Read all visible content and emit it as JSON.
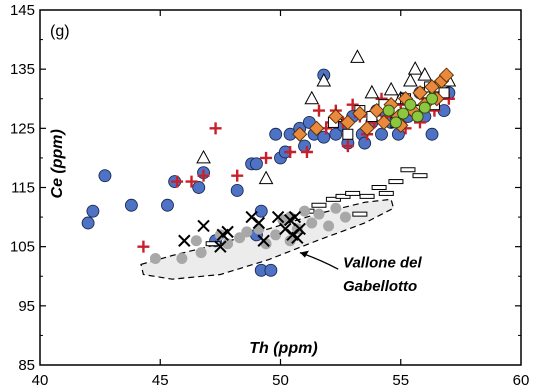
{
  "chart_data": {
    "type": "scatter",
    "panel_label": "(g)",
    "xlabel": "Th (ppm)",
    "ylabel": "Ce (ppm)",
    "xlim": [
      40,
      60
    ],
    "ylim": [
      85,
      145
    ],
    "xticks": [
      "40",
      "45",
      "50",
      "55",
      "60"
    ],
    "yticks": [
      "85",
      "95",
      "105",
      "115",
      "125",
      "135",
      "145"
    ],
    "grid": false,
    "colors": {
      "blue_circle": "#4f73c4",
      "red_plus": "#c8202a",
      "orange_diamond": "#e8893c",
      "green_circle": "#8dc63f",
      "gray_circle": "#a8a8a8",
      "field_fill": "#ececec"
    },
    "annotation": {
      "line1": "Vallone del",
      "line2": "Gabellotto",
      "arrow_target": [
        50.6,
        104
      ]
    },
    "field_outline": [
      [
        44.2,
        102
      ],
      [
        45.5,
        103.5
      ],
      [
        47.5,
        105.5
      ],
      [
        49.5,
        108
      ],
      [
        51.5,
        110.5
      ],
      [
        53.5,
        112.5
      ],
      [
        54.6,
        113
      ],
      [
        54.7,
        111.5
      ],
      [
        53.5,
        109
      ],
      [
        51.5,
        106
      ],
      [
        49.5,
        102.8
      ],
      [
        47.5,
        100.3
      ],
      [
        45.5,
        99.5
      ],
      [
        44.3,
        100.3
      ]
    ],
    "series": [
      {
        "marker": "circle-blue",
        "points": [
          [
            42.0,
            109
          ],
          [
            42.2,
            111
          ],
          [
            42.7,
            117
          ],
          [
            43.8,
            112
          ],
          [
            45.3,
            112
          ],
          [
            45.6,
            116
          ],
          [
            46.6,
            115
          ],
          [
            46.8,
            117.5
          ],
          [
            47.3,
            106
          ],
          [
            48.2,
            114.5
          ],
          [
            48.8,
            119
          ],
          [
            49.0,
            119
          ],
          [
            49.0,
            107
          ],
          [
            49.2,
            111
          ],
          [
            49.2,
            101
          ],
          [
            49.6,
            101
          ],
          [
            49.8,
            124
          ],
          [
            50.0,
            120
          ],
          [
            50.2,
            121
          ],
          [
            50.4,
            124
          ],
          [
            50.8,
            125
          ],
          [
            51.0,
            122
          ],
          [
            51.2,
            126
          ],
          [
            51.4,
            124
          ],
          [
            51.8,
            134
          ],
          [
            51.8,
            123.5
          ],
          [
            52.3,
            124
          ],
          [
            52.6,
            125.5
          ],
          [
            52.8,
            122.5
          ],
          [
            53.0,
            127
          ],
          [
            53.4,
            124
          ],
          [
            53.5,
            122.5
          ],
          [
            53.8,
            126
          ],
          [
            54.0,
            128
          ],
          [
            54.2,
            124
          ],
          [
            54.4,
            127.5
          ],
          [
            54.6,
            126
          ],
          [
            54.9,
            124
          ],
          [
            55.1,
            130
          ],
          [
            55.3,
            127
          ],
          [
            55.6,
            128
          ],
          [
            55.8,
            131
          ],
          [
            56.0,
            127
          ],
          [
            56.3,
            124
          ],
          [
            56.5,
            131
          ],
          [
            56.8,
            128
          ],
          [
            57.0,
            131
          ]
        ]
      },
      {
        "marker": "plus-red",
        "points": [
          [
            44.3,
            105
          ],
          [
            45.7,
            116
          ],
          [
            46.3,
            116
          ],
          [
            46.8,
            117
          ],
          [
            47.3,
            125
          ],
          [
            48.2,
            117
          ],
          [
            49.4,
            120
          ],
          [
            50.4,
            121
          ],
          [
            51.1,
            121
          ],
          [
            51.6,
            128
          ],
          [
            51.9,
            125
          ],
          [
            52.1,
            126
          ],
          [
            52.3,
            128
          ],
          [
            52.6,
            126
          ],
          [
            52.8,
            122
          ],
          [
            53.0,
            129
          ],
          [
            53.3,
            127
          ],
          [
            53.6,
            124
          ],
          [
            53.9,
            126
          ],
          [
            54.2,
            130
          ],
          [
            54.4,
            127
          ],
          [
            54.7,
            126
          ],
          [
            55.0,
            129
          ],
          [
            55.2,
            125
          ],
          [
            55.5,
            128
          ],
          [
            55.8,
            126
          ],
          [
            56.1,
            130
          ],
          [
            56.4,
            128
          ],
          [
            56.7,
            131
          ],
          [
            57.0,
            130
          ]
        ]
      },
      {
        "marker": "triangle-open",
        "points": [
          [
            46.8,
            120
          ],
          [
            49.4,
            116.5
          ],
          [
            51.3,
            130
          ],
          [
            51.8,
            133
          ],
          [
            52.3,
            127
          ],
          [
            53.2,
            137
          ],
          [
            53.8,
            131
          ],
          [
            54.6,
            131.5
          ],
          [
            55.0,
            130
          ],
          [
            55.4,
            133
          ],
          [
            55.6,
            135
          ],
          [
            56.0,
            134
          ],
          [
            56.5,
            132
          ],
          [
            57.0,
            133
          ]
        ]
      },
      {
        "marker": "square-open",
        "points": [
          [
            52.2,
            126
          ],
          [
            52.8,
            124
          ],
          [
            53.3,
            128
          ],
          [
            53.8,
            127
          ],
          [
            54.3,
            129
          ],
          [
            54.8,
            126
          ],
          [
            55.2,
            130
          ],
          [
            55.6,
            128
          ],
          [
            56.0,
            131
          ],
          [
            56.4,
            129
          ],
          [
            56.8,
            131
          ],
          [
            56.2,
            132
          ]
        ]
      },
      {
        "marker": "dash-open",
        "points": [
          [
            47.2,
            105.5
          ],
          [
            51.1,
            111
          ],
          [
            51.6,
            112
          ],
          [
            52.2,
            113
          ],
          [
            52.6,
            113.5
          ],
          [
            53.0,
            114
          ],
          [
            53.6,
            113.5
          ],
          [
            54.1,
            115
          ],
          [
            54.4,
            114
          ],
          [
            54.8,
            116
          ],
          [
            55.3,
            118
          ],
          [
            55.8,
            117
          ],
          [
            53.3,
            110.5
          ]
        ]
      },
      {
        "marker": "diamond-orange",
        "points": [
          [
            50.8,
            124
          ],
          [
            51.5,
            125
          ],
          [
            52.3,
            127
          ],
          [
            52.8,
            126
          ],
          [
            53.3,
            127.5
          ],
          [
            53.6,
            125
          ],
          [
            54.0,
            128
          ],
          [
            54.3,
            126
          ],
          [
            54.6,
            129
          ],
          [
            54.9,
            127
          ],
          [
            55.2,
            130
          ],
          [
            55.5,
            128
          ],
          [
            55.8,
            131
          ],
          [
            56.0,
            129
          ],
          [
            56.3,
            132
          ],
          [
            56.5,
            130
          ],
          [
            56.7,
            133
          ],
          [
            56.9,
            134
          ],
          [
            55.0,
            125.5
          ]
        ]
      },
      {
        "marker": "circle-green",
        "points": [
          [
            54.5,
            128
          ],
          [
            54.8,
            126
          ],
          [
            55.1,
            127.5
          ],
          [
            55.4,
            129
          ],
          [
            55.7,
            127
          ],
          [
            56.0,
            128.5
          ],
          [
            56.3,
            130
          ]
        ]
      },
      {
        "marker": "circle-gray",
        "points": [
          [
            44.8,
            103
          ],
          [
            45.9,
            103
          ],
          [
            46.5,
            106
          ],
          [
            46.7,
            104
          ],
          [
            47.5,
            107
          ],
          [
            47.8,
            105.5
          ],
          [
            48.3,
            106.5
          ],
          [
            48.6,
            107.5
          ],
          [
            49.1,
            108
          ],
          [
            49.4,
            105.5
          ],
          [
            49.8,
            107
          ],
          [
            50.1,
            109.5
          ],
          [
            50.4,
            110
          ],
          [
            50.7,
            108
          ],
          [
            51.0,
            111
          ],
          [
            51.3,
            109
          ],
          [
            51.6,
            110.5
          ],
          [
            52.0,
            108.5
          ],
          [
            52.3,
            111.5
          ],
          [
            52.7,
            110
          ],
          [
            50.4,
            106
          ]
        ]
      },
      {
        "marker": "cross-black",
        "points": [
          [
            46.0,
            106
          ],
          [
            46.8,
            108.5
          ],
          [
            47.5,
            105
          ],
          [
            47.6,
            107
          ],
          [
            47.8,
            107.5
          ],
          [
            48.8,
            110
          ],
          [
            49.1,
            109
          ],
          [
            49.3,
            106
          ],
          [
            49.9,
            110
          ],
          [
            50.2,
            108
          ],
          [
            50.4,
            109.5
          ],
          [
            50.5,
            107
          ],
          [
            50.6,
            110
          ],
          [
            50.7,
            106.5
          ],
          [
            50.8,
            108
          ]
        ]
      }
    ]
  }
}
